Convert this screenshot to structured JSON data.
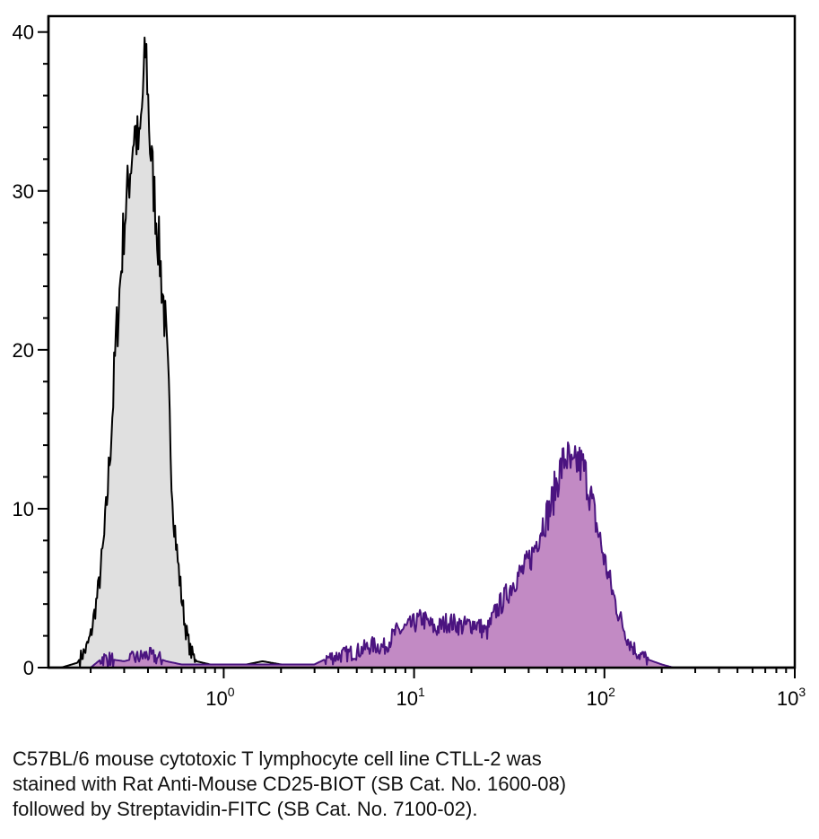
{
  "chart_data": {
    "type": "area",
    "x_scale": "log",
    "xlim": [
      0.12,
      1000
    ],
    "ylim": [
      0,
      41
    ],
    "grid": false,
    "y_ticks": [
      {
        "value": 0,
        "label": "0"
      },
      {
        "value": 10,
        "label": "10"
      },
      {
        "value": 20,
        "label": "20"
      },
      {
        "value": 30,
        "label": "30"
      },
      {
        "value": 40,
        "label": "40"
      }
    ],
    "x_ticks": [
      {
        "value": 1,
        "base": "10",
        "exp": "0"
      },
      {
        "value": 10,
        "base": "10",
        "exp": "1"
      },
      {
        "value": 100,
        "base": "10",
        "exp": "2"
      },
      {
        "value": 1000,
        "base": "10",
        "exp": "3"
      }
    ],
    "series": [
      {
        "fill": "#e0e0e0",
        "stroke": "#000000",
        "points": [
          [
            0.14,
            0
          ],
          [
            0.17,
            0.3
          ],
          [
            0.19,
            1.2
          ],
          [
            0.2,
            2.0
          ],
          [
            0.21,
            3.5
          ],
          [
            0.22,
            5.0
          ],
          [
            0.235,
            8.0
          ],
          [
            0.245,
            11.0
          ],
          [
            0.26,
            16.0
          ],
          [
            0.27,
            20.0
          ],
          [
            0.285,
            24.0
          ],
          [
            0.3,
            28.0
          ],
          [
            0.32,
            31.0
          ],
          [
            0.34,
            34.0
          ],
          [
            0.36,
            32.5
          ],
          [
            0.38,
            37.0
          ],
          [
            0.39,
            39.2
          ],
          [
            0.41,
            33.0
          ],
          [
            0.43,
            30.0
          ],
          [
            0.46,
            26.0
          ],
          [
            0.49,
            22.0
          ],
          [
            0.51,
            18.0
          ],
          [
            0.54,
            10.5
          ],
          [
            0.57,
            7.0
          ],
          [
            0.6,
            4.5
          ],
          [
            0.63,
            2.5
          ],
          [
            0.67,
            1.0
          ],
          [
            0.72,
            0.4
          ],
          [
            0.85,
            0.2
          ],
          [
            1.2,
            0.1
          ],
          [
            1.6,
            0.4
          ],
          [
            2.0,
            0.2
          ],
          [
            3.0,
            0
          ]
        ]
      },
      {
        "fill": "#c28ac4",
        "stroke": "#4b1480",
        "points": [
          [
            0.2,
            0
          ],
          [
            0.23,
            0.6
          ],
          [
            0.3,
            0.4
          ],
          [
            0.4,
            0.8
          ],
          [
            0.5,
            0.4
          ],
          [
            0.6,
            0.2
          ],
          [
            1.0,
            0.2
          ],
          [
            2.0,
            0.2
          ],
          [
            3.0,
            0.2
          ],
          [
            3.5,
            0.6
          ],
          [
            5.0,
            1.0
          ],
          [
            6.0,
            1.4
          ],
          [
            7.0,
            1.3
          ],
          [
            8.0,
            2.2
          ],
          [
            9.5,
            2.6
          ],
          [
            11.0,
            3.1
          ],
          [
            13.0,
            2.4
          ],
          [
            15.0,
            2.9
          ],
          [
            18.0,
            2.6
          ],
          [
            21.0,
            2.8
          ],
          [
            24.0,
            2.2
          ],
          [
            27.0,
            3.6
          ],
          [
            30.0,
            4.4
          ],
          [
            34.0,
            5.6
          ],
          [
            38.0,
            6.2
          ],
          [
            42.0,
            7.2
          ],
          [
            47.0,
            9.0
          ],
          [
            52.0,
            10.0
          ],
          [
            57.0,
            12.0
          ],
          [
            63.0,
            13.4
          ],
          [
            68.0,
            12.2
          ],
          [
            72.0,
            13.0
          ],
          [
            78.0,
            12.5
          ],
          [
            84.0,
            11.0
          ],
          [
            90.0,
            9.2
          ],
          [
            100.0,
            6.8
          ],
          [
            110.0,
            4.8
          ],
          [
            120.0,
            3.2
          ],
          [
            135.0,
            1.6
          ],
          [
            150.0,
            0.9
          ],
          [
            170.0,
            0.5
          ],
          [
            200.0,
            0.2
          ],
          [
            230.0,
            0
          ]
        ]
      }
    ]
  },
  "caption": {
    "line1": "C57BL/6 mouse cytotoxic T lymphocyte cell line CTLL-2 was",
    "line2": "stained with Rat Anti-Mouse CD25-BIOT (SB Cat. No. 1600-08)",
    "line3": "followed by Streptavidin-FITC (SB Cat. No. 7100-02)."
  }
}
